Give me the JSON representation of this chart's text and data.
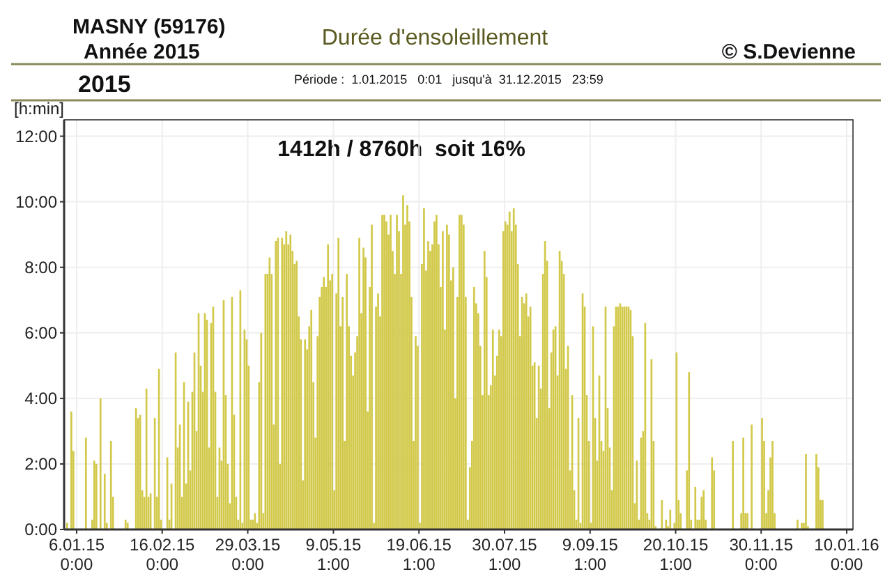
{
  "chart_data": {
    "type": "bar",
    "title": "Durée d'ensoleillement",
    "ylabel": "[h:min]",
    "annotations": [
      "MASNY (59176)",
      "Année 2015",
      "© S.Devienne",
      "2015",
      "Période :  1.01.2015   0:01   jusqu'à  31.12.2015   23:59",
      "1412h / 8760h  soit 16%"
    ],
    "xlim": [
      "2014-12-31",
      "2016-01-13"
    ],
    "xticks": [
      {
        "value": "2015-01-06",
        "label": "6.01.15\n0:00"
      },
      {
        "value": "2015-02-16",
        "label": "16.02.15\n0:00"
      },
      {
        "value": "2015-03-29",
        "label": "29.03.15\n0:00"
      },
      {
        "value": "2015-05-09T01:00",
        "label": "9.05.15\n1:00"
      },
      {
        "value": "2015-06-19T01:00",
        "label": "19.06.15\n1:00"
      },
      {
        "value": "2015-07-30T01:00",
        "label": "30.07.15\n1:00"
      },
      {
        "value": "2015-09-09T01:00",
        "label": "9.09.15\n1:00"
      },
      {
        "value": "2015-10-20T01:00",
        "label": "20.10.15\n1:00"
      },
      {
        "value": "2015-11-30",
        "label": "30.11.15\n0:00"
      },
      {
        "value": "2016-01-10",
        "label": "10.01.16\n0:00"
      }
    ],
    "ylim": [
      0,
      12.5
    ],
    "yticks": [
      {
        "value": 0,
        "label": "0:00"
      },
      {
        "value": 2,
        "label": "2:00"
      },
      {
        "value": 4,
        "label": "4:00"
      },
      {
        "value": 6,
        "label": "6:00"
      },
      {
        "value": 8,
        "label": "8:00"
      },
      {
        "value": 10,
        "label": "10:00"
      },
      {
        "value": 12,
        "label": "12:00"
      }
    ],
    "grid": true,
    "x": [
      "2015-01-01",
      "2015-01-02",
      "2015-01-03",
      "2015-01-04",
      "2015-01-05",
      "2015-01-06",
      "2015-01-07",
      "2015-01-08",
      "2015-01-09",
      "2015-01-10",
      "2015-01-11",
      "2015-01-12",
      "2015-01-13",
      "2015-01-14",
      "2015-01-15",
      "2015-01-16",
      "2015-01-17",
      "2015-01-18",
      "2015-01-19",
      "2015-01-20",
      "2015-01-21",
      "2015-01-22",
      "2015-01-23",
      "2015-01-24",
      "2015-01-25",
      "2015-01-26",
      "2015-01-27",
      "2015-01-28",
      "2015-01-29",
      "2015-01-30",
      "2015-01-31",
      "2015-02-01",
      "2015-02-02",
      "2015-02-03",
      "2015-02-04",
      "2015-02-05",
      "2015-02-06",
      "2015-02-07",
      "2015-02-08",
      "2015-02-09",
      "2015-02-10",
      "2015-02-11",
      "2015-02-12",
      "2015-02-13",
      "2015-02-14",
      "2015-02-15",
      "2015-02-16",
      "2015-02-17",
      "2015-02-18",
      "2015-02-19",
      "2015-02-20",
      "2015-02-21",
      "2015-02-22",
      "2015-02-23",
      "2015-02-24",
      "2015-02-25",
      "2015-02-26",
      "2015-02-27",
      "2015-02-28",
      "2015-03-01",
      "2015-03-02",
      "2015-03-03",
      "2015-03-04",
      "2015-03-05",
      "2015-03-06",
      "2015-03-07",
      "2015-03-08",
      "2015-03-09",
      "2015-03-10",
      "2015-03-11",
      "2015-03-12",
      "2015-03-13",
      "2015-03-14",
      "2015-03-15",
      "2015-03-16",
      "2015-03-17",
      "2015-03-18",
      "2015-03-19",
      "2015-03-20",
      "2015-03-21",
      "2015-03-22",
      "2015-03-23",
      "2015-03-24",
      "2015-03-25",
      "2015-03-26",
      "2015-03-27",
      "2015-03-28",
      "2015-03-29",
      "2015-03-30",
      "2015-03-31",
      "2015-04-01",
      "2015-04-02",
      "2015-04-03",
      "2015-04-04",
      "2015-04-05",
      "2015-04-06",
      "2015-04-07",
      "2015-04-08",
      "2015-04-09",
      "2015-04-10",
      "2015-04-11",
      "2015-04-12",
      "2015-04-13",
      "2015-04-14",
      "2015-04-15",
      "2015-04-16",
      "2015-04-17",
      "2015-04-18",
      "2015-04-19",
      "2015-04-20",
      "2015-04-21",
      "2015-04-22",
      "2015-04-23",
      "2015-04-24",
      "2015-04-25",
      "2015-04-26",
      "2015-04-27",
      "2015-04-28",
      "2015-04-29",
      "2015-04-30",
      "2015-05-01",
      "2015-05-02",
      "2015-05-03",
      "2015-05-04",
      "2015-05-05",
      "2015-05-06",
      "2015-05-07",
      "2015-05-08",
      "2015-05-09",
      "2015-05-10",
      "2015-05-11",
      "2015-05-12",
      "2015-05-13",
      "2015-05-14",
      "2015-05-15",
      "2015-05-16",
      "2015-05-17",
      "2015-05-18",
      "2015-05-19",
      "2015-05-20",
      "2015-05-21",
      "2015-05-22",
      "2015-05-23",
      "2015-05-24",
      "2015-05-25",
      "2015-05-26",
      "2015-05-27",
      "2015-05-28",
      "2015-05-29",
      "2015-05-30",
      "2015-05-31",
      "2015-06-01",
      "2015-06-02",
      "2015-06-03",
      "2015-06-04",
      "2015-06-05",
      "2015-06-06",
      "2015-06-07",
      "2015-06-08",
      "2015-06-09",
      "2015-06-10",
      "2015-06-11",
      "2015-06-12",
      "2015-06-13",
      "2015-06-14",
      "2015-06-15",
      "2015-06-16",
      "2015-06-17",
      "2015-06-18",
      "2015-06-19",
      "2015-06-20",
      "2015-06-21",
      "2015-06-22",
      "2015-06-23",
      "2015-06-24",
      "2015-06-25",
      "2015-06-26",
      "2015-06-27",
      "2015-06-28",
      "2015-06-29",
      "2015-06-30",
      "2015-07-01",
      "2015-07-02",
      "2015-07-03",
      "2015-07-04",
      "2015-07-05",
      "2015-07-06",
      "2015-07-07",
      "2015-07-08",
      "2015-07-09",
      "2015-07-10",
      "2015-07-11",
      "2015-07-12",
      "2015-07-13",
      "2015-07-14",
      "2015-07-15",
      "2015-07-16",
      "2015-07-17",
      "2015-07-18",
      "2015-07-19",
      "2015-07-20",
      "2015-07-21",
      "2015-07-22",
      "2015-07-23",
      "2015-07-24",
      "2015-07-25",
      "2015-07-26",
      "2015-07-27",
      "2015-07-28",
      "2015-07-29",
      "2015-07-30",
      "2015-07-31",
      "2015-08-01",
      "2015-08-02",
      "2015-08-03",
      "2015-08-04",
      "2015-08-05",
      "2015-08-06",
      "2015-08-07",
      "2015-08-08",
      "2015-08-09",
      "2015-08-10",
      "2015-08-11",
      "2015-08-12",
      "2015-08-13",
      "2015-08-14",
      "2015-08-15",
      "2015-08-16",
      "2015-08-17",
      "2015-08-18",
      "2015-08-19",
      "2015-08-20",
      "2015-08-21",
      "2015-08-22",
      "2015-08-23",
      "2015-08-24",
      "2015-08-25",
      "2015-08-26",
      "2015-08-27",
      "2015-08-28",
      "2015-08-29",
      "2015-08-30",
      "2015-08-31",
      "2015-09-01",
      "2015-09-02",
      "2015-09-03",
      "2015-09-04",
      "2015-09-05",
      "2015-09-06",
      "2015-09-07",
      "2015-09-08",
      "2015-09-09",
      "2015-09-10",
      "2015-09-11",
      "2015-09-12",
      "2015-09-13",
      "2015-09-14",
      "2015-09-15",
      "2015-09-16",
      "2015-09-17",
      "2015-09-18",
      "2015-09-19",
      "2015-09-20",
      "2015-09-21",
      "2015-09-22",
      "2015-09-23",
      "2015-09-24",
      "2015-09-25",
      "2015-09-26",
      "2015-09-27",
      "2015-09-28",
      "2015-09-29",
      "2015-09-30",
      "2015-10-01",
      "2015-10-02",
      "2015-10-03",
      "2015-10-04",
      "2015-10-05",
      "2015-10-06",
      "2015-10-07",
      "2015-10-08",
      "2015-10-09",
      "2015-10-10",
      "2015-10-11",
      "2015-10-12",
      "2015-10-13",
      "2015-10-14",
      "2015-10-15",
      "2015-10-16",
      "2015-10-17",
      "2015-10-18",
      "2015-10-19",
      "2015-10-20",
      "2015-10-21",
      "2015-10-22",
      "2015-10-23",
      "2015-10-24",
      "2015-10-25",
      "2015-10-26",
      "2015-10-27",
      "2015-10-28",
      "2015-10-29",
      "2015-10-30",
      "2015-10-31",
      "2015-11-01",
      "2015-11-02",
      "2015-11-03",
      "2015-11-04",
      "2015-11-05",
      "2015-11-06",
      "2015-11-07",
      "2015-11-08",
      "2015-11-09",
      "2015-11-10",
      "2015-11-11",
      "2015-11-12",
      "2015-11-13",
      "2015-11-14",
      "2015-11-15",
      "2015-11-16",
      "2015-11-17",
      "2015-11-18",
      "2015-11-19",
      "2015-11-20",
      "2015-11-21",
      "2015-11-22",
      "2015-11-23",
      "2015-11-24",
      "2015-11-25",
      "2015-11-26",
      "2015-11-27",
      "2015-11-28",
      "2015-11-29",
      "2015-11-30",
      "2015-12-01",
      "2015-12-02",
      "2015-12-03",
      "2015-12-04",
      "2015-12-05",
      "2015-12-06",
      "2015-12-07",
      "2015-12-08",
      "2015-12-09",
      "2015-12-10",
      "2015-12-11",
      "2015-12-12",
      "2015-12-13",
      "2015-12-14",
      "2015-12-15",
      "2015-12-16",
      "2015-12-17",
      "2015-12-18",
      "2015-12-19",
      "2015-12-20",
      "2015-12-21",
      "2015-12-22",
      "2015-12-23",
      "2015-12-24",
      "2015-12-25",
      "2015-12-26",
      "2015-12-27",
      "2015-12-28",
      "2015-12-29",
      "2015-12-30",
      "2015-12-31"
    ],
    "series": [
      {
        "color": "#d2c94a",
        "values": [
          0.2,
          0,
          3.6,
          2.4,
          0,
          0,
          0,
          0,
          0,
          2.8,
          0,
          0,
          0.3,
          2.1,
          2.0,
          0,
          4.0,
          0,
          1.7,
          0.2,
          0,
          2.7,
          1.0,
          0,
          0,
          0,
          0,
          0,
          0.3,
          0.2,
          0,
          0,
          0,
          3.7,
          3.4,
          3.5,
          1.2,
          1.0,
          4.3,
          1.0,
          1.1,
          0,
          3.4,
          1.0,
          4.9,
          0.3,
          0,
          0,
          2.2,
          0.3,
          1.4,
          0,
          5.4,
          2.5,
          3.2,
          1.0,
          4.5,
          1.4,
          3.9,
          1.8,
          4.2,
          5.4,
          3.0,
          6.6,
          5.0,
          4.2,
          6.6,
          6.4,
          2.5,
          6.3,
          6.8,
          4.2,
          1.0,
          2.5,
          2.1,
          7.0,
          4.1,
          2.0,
          0.8,
          7.1,
          3.5,
          1.0,
          0.3,
          7.3,
          0.2,
          6.1,
          5.8,
          5.0,
          0.3,
          0.3,
          0.5,
          0.2,
          4.5,
          6.0,
          0.5,
          7.8,
          7.8,
          8.3,
          7.8,
          3.2,
          8.8,
          8.9,
          2.0,
          8.9,
          8.7,
          9.1,
          8.7,
          9.0,
          8.5,
          8.1,
          8.2,
          6.5,
          5.8,
          1.5,
          5.8,
          5.5,
          6.2,
          6.7,
          4.5,
          2.8,
          5.9,
          7.1,
          7.4,
          7.7,
          7.4,
          8.7,
          7.6,
          7.8,
          1.2,
          7.2,
          8.9,
          6.2,
          7.1,
          2.7,
          7.8,
          6.2,
          5.3,
          4.7,
          5.4,
          5.9,
          8.9,
          6.6,
          8.6,
          8.3,
          3.6,
          7.4,
          9.3,
          0.2,
          6.8,
          7.2,
          6.5,
          9.6,
          9.6,
          9.4,
          9.0,
          9.6,
          8.5,
          7.8,
          9.6,
          9.1,
          7.8,
          10.2,
          9.3,
          9.9,
          9.4,
          7.1,
          2.7,
          5.9,
          5.6,
          0.2,
          8.1,
          9.8,
          7.9,
          8.8,
          8.5,
          8.7,
          9.4,
          9.6,
          8.7,
          7.4,
          9.1,
          6.1,
          9.3,
          9.0,
          7.6,
          8.0,
          4.0,
          7.1,
          9.6,
          9.6,
          9.3,
          7.1,
          0.3,
          1.9,
          2.7,
          7.4,
          6.9,
          6.6,
          5.6,
          4.1,
          8.5,
          7.7,
          4.1,
          4.4,
          6.1,
          4.7,
          5.3,
          6.1,
          5.9,
          9.1,
          9.4,
          9.3,
          9.7,
          9.1,
          9.8,
          9.3,
          8.1,
          5.9,
          7.1,
          6.9,
          7.2,
          6.5,
          6.8,
          5.0,
          5.1,
          3.4,
          5.0,
          4.3,
          7.8,
          8.8,
          8.2,
          3.7,
          5.4,
          6.1,
          6.2,
          4.7,
          8.5,
          8.2,
          7.8,
          4.9,
          5.6,
          1.8,
          4.1,
          1.2,
          0.3,
          3.4,
          0.2,
          7.2,
          6.8,
          4.1,
          2.7,
          0.2,
          6.2,
          3.4,
          2.1,
          4.7,
          2.7,
          2.4,
          6.8,
          3.7,
          2.5,
          1.2,
          6.2,
          6.8,
          6.8,
          6.9,
          6.8,
          6.8,
          6.8,
          6.8,
          6.7,
          5.9,
          0.8,
          2.1,
          0.3,
          2.8,
          3.0,
          6.3,
          0.5,
          0.3,
          5.2,
          2.7,
          0.1,
          0,
          0,
          0.9,
          0,
          0.3,
          0.1,
          0.6,
          0,
          0.2,
          5.4,
          0.9,
          0.5,
          0,
          0,
          1.8,
          4.8,
          0.3,
          0,
          1.3,
          0.3,
          0.3,
          1.0,
          1.2,
          0.3,
          0,
          0,
          2.2,
          1.8,
          0,
          0,
          0,
          0,
          0,
          0,
          0,
          0,
          2.7,
          0,
          0,
          0,
          0.5,
          2.8,
          0.5,
          0.5,
          0,
          3.2,
          0,
          0,
          0,
          0,
          3.4,
          2.7,
          0.5,
          1.2,
          2.2,
          2.7,
          0.5,
          0,
          0,
          0,
          0,
          0,
          0,
          0,
          0,
          0,
          0,
          0.3,
          0,
          0.2,
          0.2,
          2.3,
          0.1,
          0,
          0,
          0,
          2.3,
          1.9,
          0.9,
          0.9,
          0,
          0
        ]
      }
    ]
  }
}
